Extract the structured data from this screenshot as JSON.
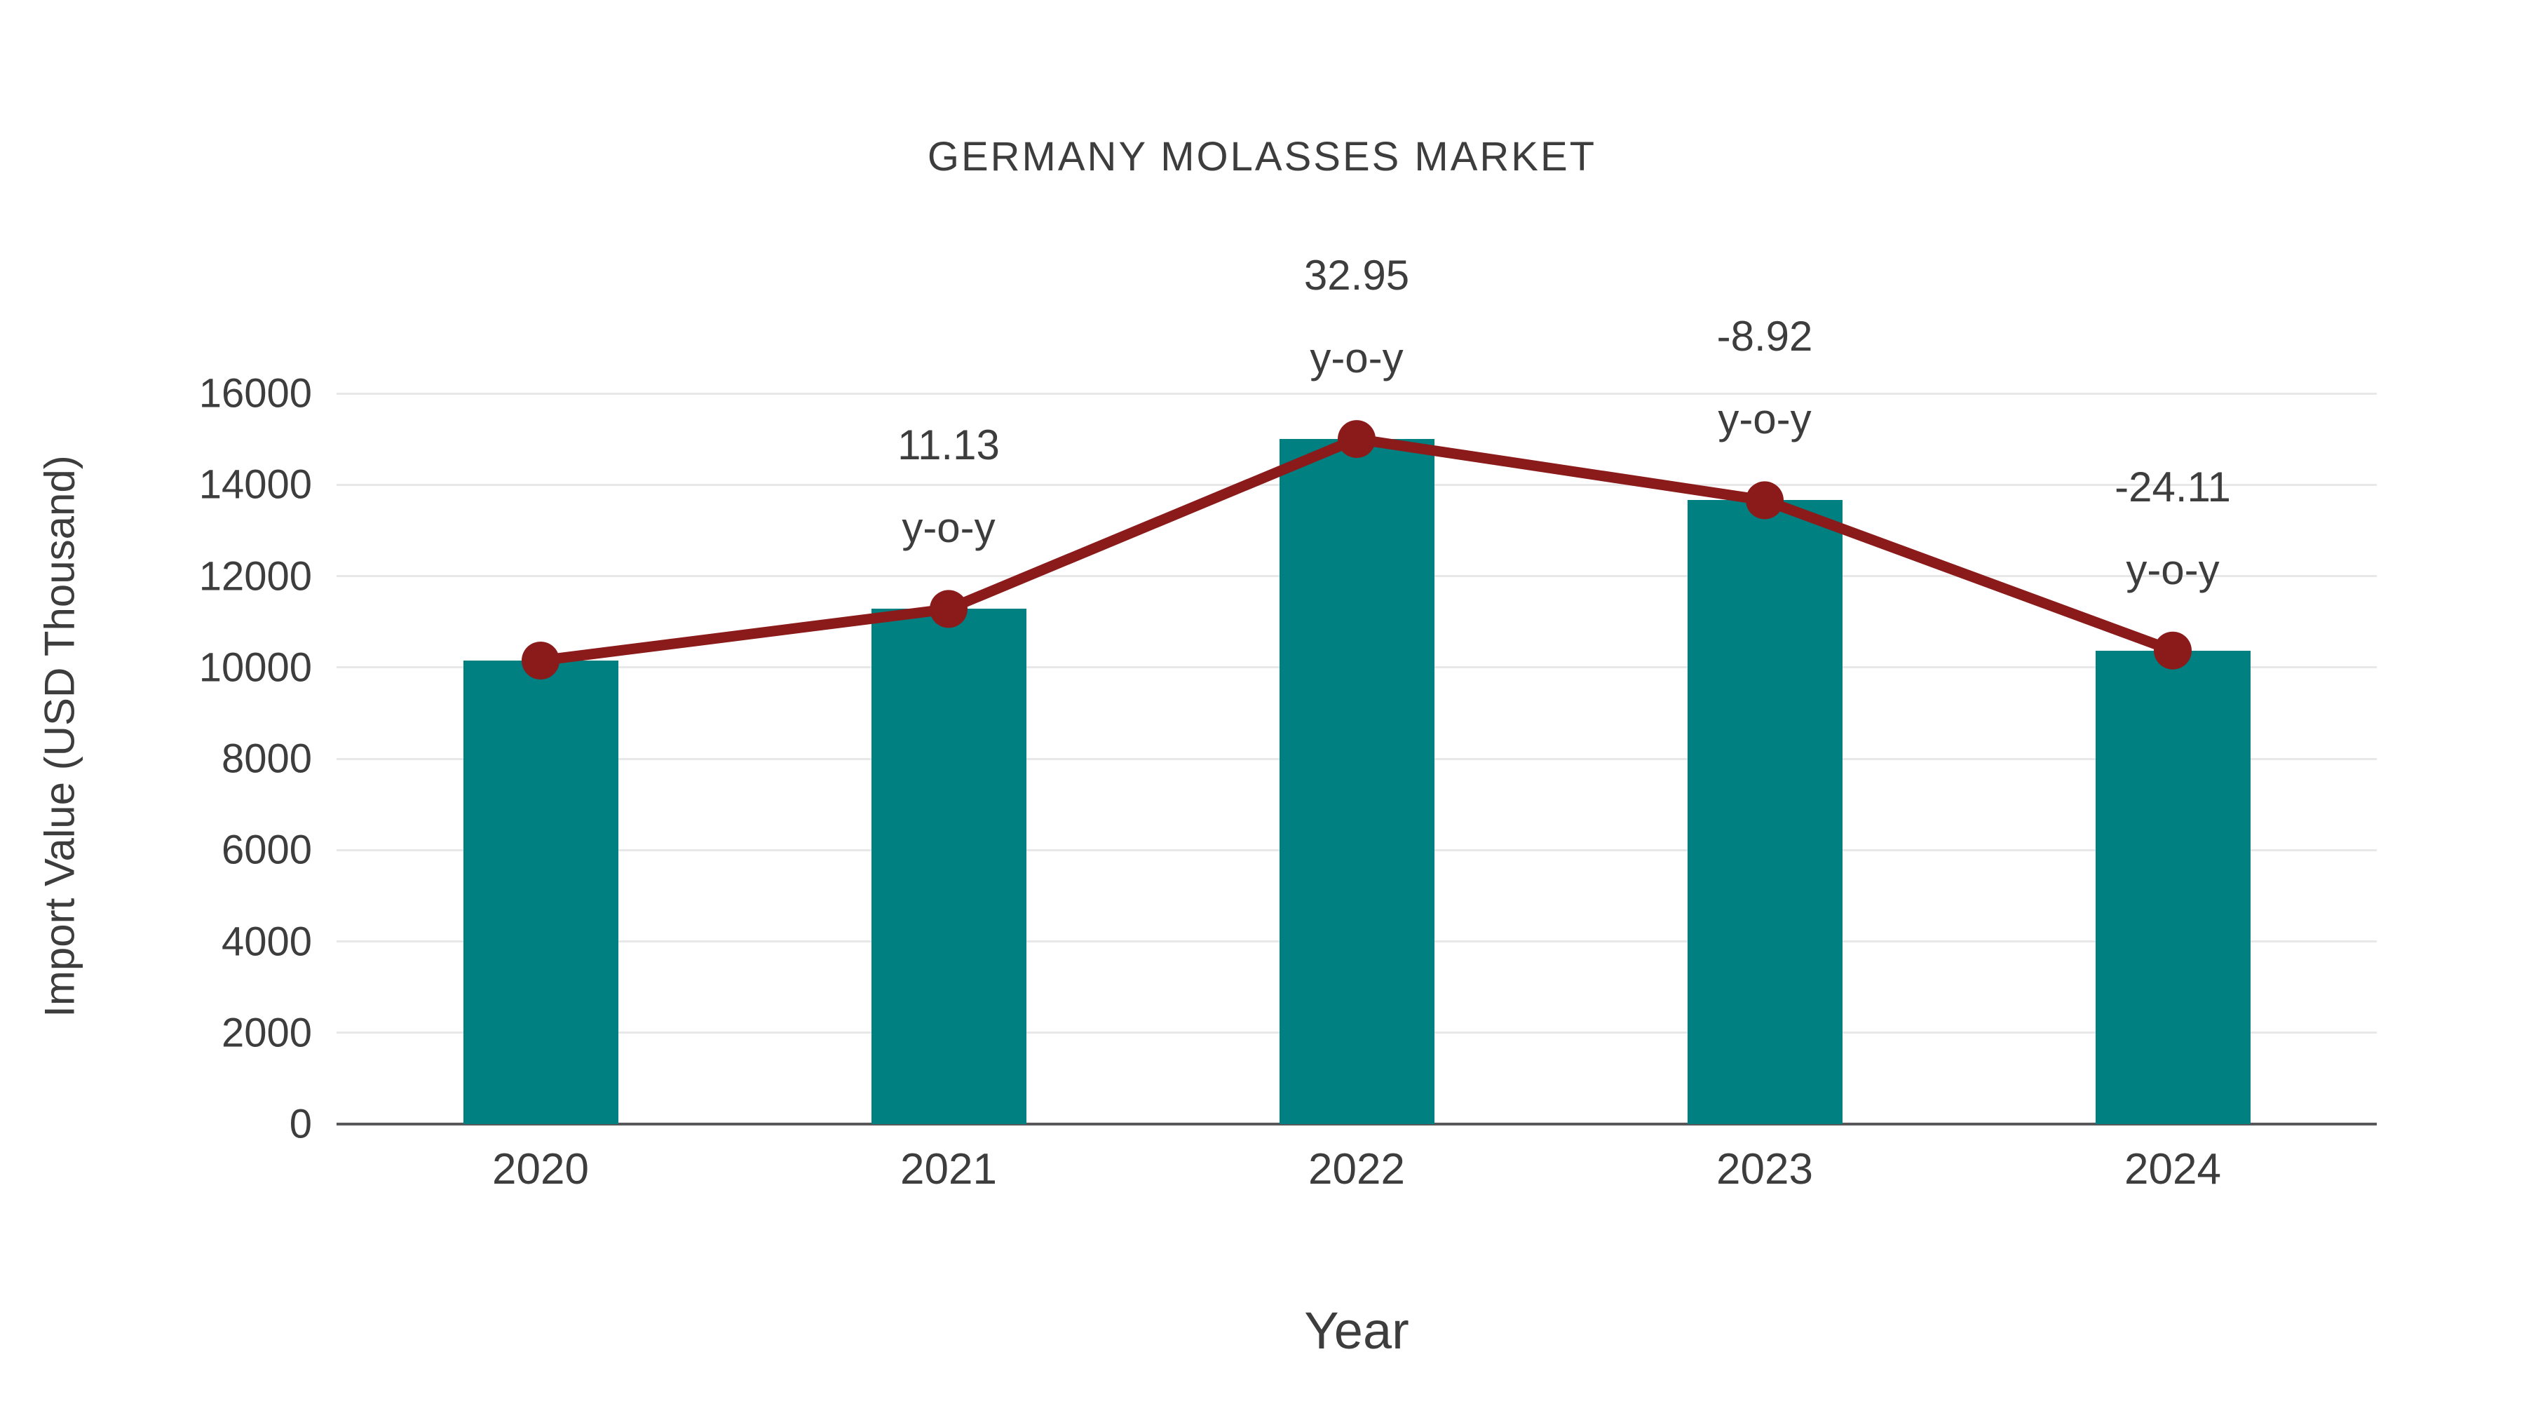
{
  "chart_data": {
    "type": "bar",
    "title": "GERMANY MOLASSES MARKET",
    "xlabel": "Year",
    "ylabel": "Import Value (USD Thousand)",
    "categories": [
      "2020",
      "2021",
      "2022",
      "2023",
      "2024"
    ],
    "series": [
      {
        "name": "Import Value (USD Thousand)",
        "render": "bar",
        "values": [
          10150,
          11280,
          15000,
          13660,
          10370
        ]
      },
      {
        "name": "y-o-y growth (%)",
        "render": "line",
        "values": [
          null,
          11.13,
          32.95,
          -8.92,
          -24.11
        ]
      }
    ],
    "point_labels": [
      "",
      "11.13",
      "32.95",
      "-8.92",
      "-24.11"
    ],
    "point_label_suffix": "y-o-y",
    "ylim": [
      0,
      16000
    ],
    "yticks": [
      0,
      2000,
      4000,
      6000,
      8000,
      10000,
      12000,
      14000,
      16000
    ],
    "grid": true,
    "legend": "none",
    "colors": {
      "bar": "#008080",
      "line": "#8B1A1A",
      "text": "#3d3d3d",
      "gridline": "#e8e8e8",
      "axis": "#58585a",
      "background": "#ffffff"
    }
  }
}
